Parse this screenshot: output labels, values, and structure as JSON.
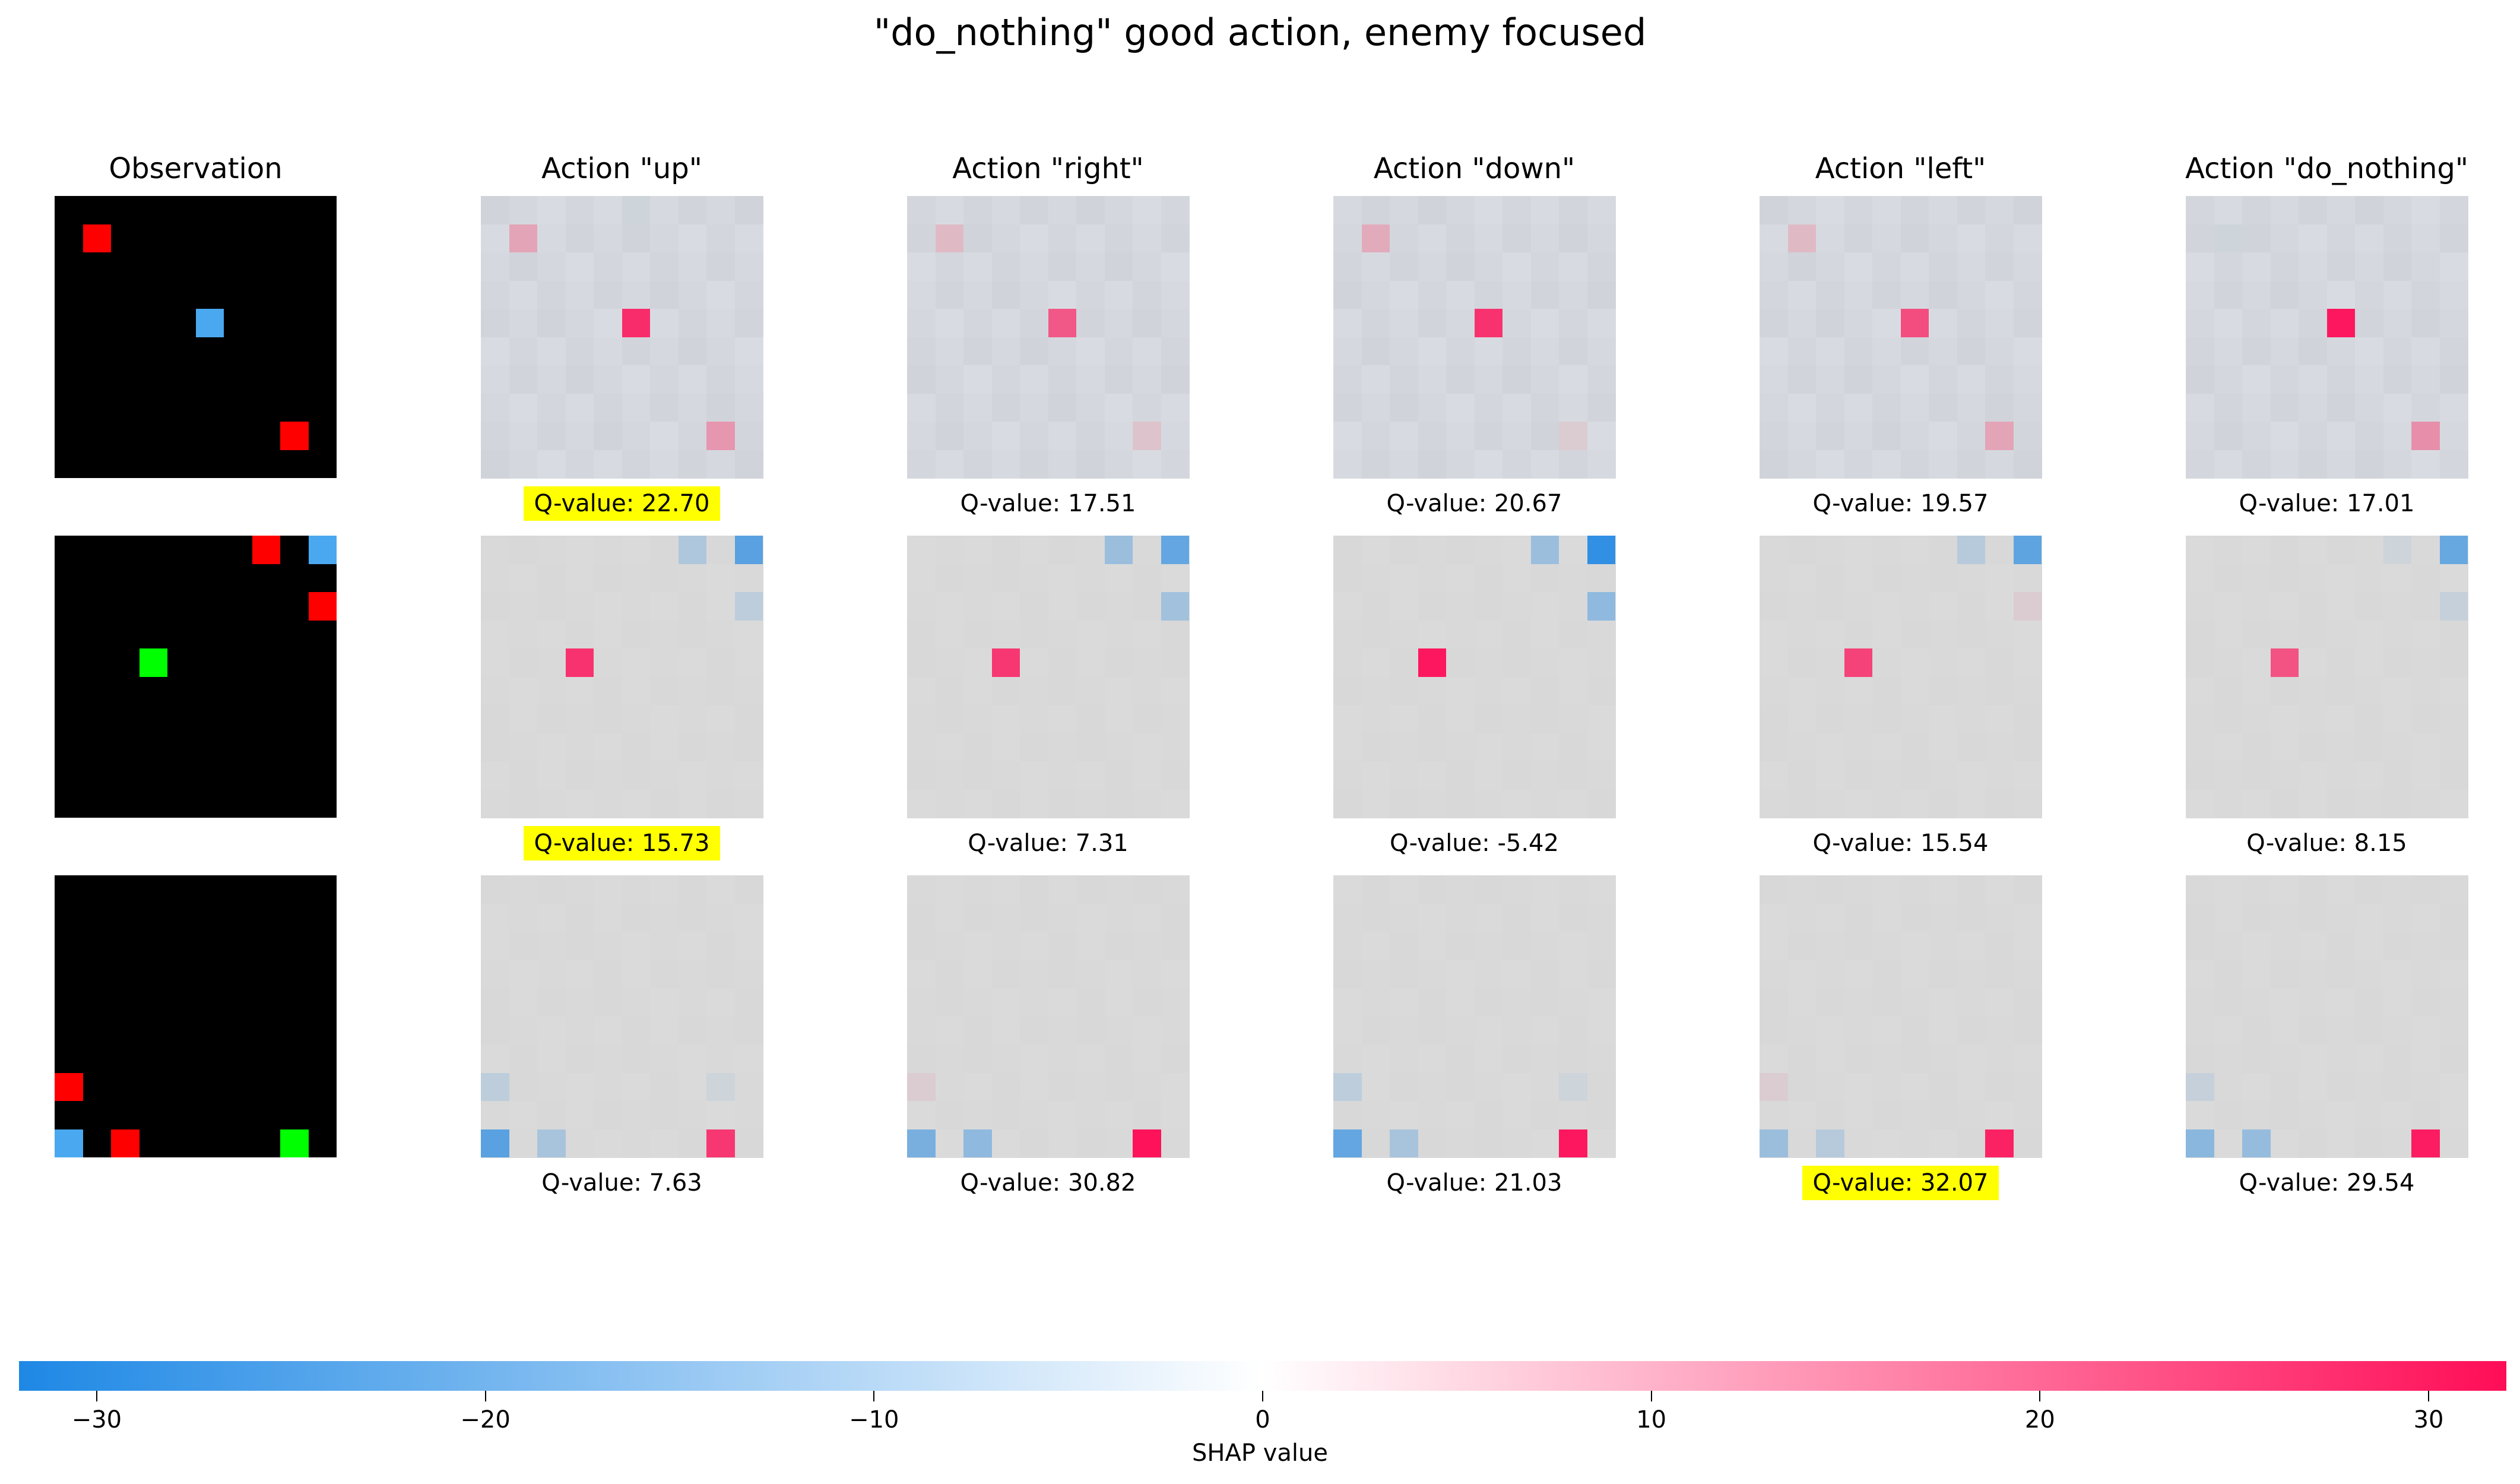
{
  "title": "\"do_nothing\" good action, enemy focused",
  "chart_data": {
    "type": "heatmap",
    "column_titles": [
      "Observation",
      "Action \"up\"",
      "Action \"right\"",
      "Action \"down\"",
      "Action \"left\"",
      "Action \"do_nothing\""
    ],
    "grid_size": 10,
    "rows": [
      {
        "observation": [
          {
            "r": 1,
            "c": 1,
            "color": "#ff0000"
          },
          {
            "r": 4,
            "c": 5,
            "color": "#4aa8f0"
          },
          {
            "r": 8,
            "c": 8,
            "color": "#ff0000"
          }
        ],
        "actions": [
          {
            "q_value": "Q-value: 22.70",
            "best": true,
            "cells": [
              {
                "r": 1,
                "c": 1,
                "v": 6
              },
              {
                "r": 4,
                "c": 5,
                "v": 26
              },
              {
                "r": 8,
                "c": 8,
                "v": 8
              },
              {
                "r": 0,
                "c": 5,
                "v": -1
              }
            ]
          },
          {
            "q_value": "Q-value: 17.51",
            "best": false,
            "cells": [
              {
                "r": 1,
                "c": 1,
                "v": 3
              },
              {
                "r": 4,
                "c": 5,
                "v": 18
              },
              {
                "r": 8,
                "c": 8,
                "v": 2
              }
            ]
          },
          {
            "q_value": "Q-value: 20.67",
            "best": false,
            "cells": [
              {
                "r": 1,
                "c": 1,
                "v": 5
              },
              {
                "r": 4,
                "c": 5,
                "v": 25
              },
              {
                "r": 8,
                "c": 8,
                "v": 1
              }
            ]
          },
          {
            "q_value": "Q-value: 19.57",
            "best": false,
            "cells": [
              {
                "r": 1,
                "c": 1,
                "v": 3
              },
              {
                "r": 4,
                "c": 5,
                "v": 20
              },
              {
                "r": 8,
                "c": 8,
                "v": 6
              }
            ]
          },
          {
            "q_value": "Q-value: 17.01",
            "best": false,
            "cells": [
              {
                "r": 1,
                "c": 1,
                "v": -1
              },
              {
                "r": 4,
                "c": 5,
                "v": 30
              },
              {
                "r": 8,
                "c": 8,
                "v": 9
              }
            ]
          }
        ]
      },
      {
        "observation": [
          {
            "r": 0,
            "c": 7,
            "color": "#ff0000"
          },
          {
            "r": 0,
            "c": 9,
            "color": "#4aa8f0"
          },
          {
            "r": 2,
            "c": 9,
            "color": "#ff0000"
          },
          {
            "r": 4,
            "c": 3,
            "color": "#00ff00"
          }
        ],
        "actions": [
          {
            "q_value": "Q-value: 15.73",
            "best": true,
            "cells": [
              {
                "r": 0,
                "c": 7,
                "v": -5
              },
              {
                "r": 0,
                "c": 9,
                "v": -20
              },
              {
                "r": 2,
                "c": 9,
                "v": -3
              },
              {
                "r": 4,
                "c": 3,
                "v": 25
              }
            ]
          },
          {
            "q_value": "Q-value: 7.31",
            "best": false,
            "cells": [
              {
                "r": 0,
                "c": 7,
                "v": -8
              },
              {
                "r": 0,
                "c": 9,
                "v": -18
              },
              {
                "r": 2,
                "c": 9,
                "v": -7
              },
              {
                "r": 4,
                "c": 3,
                "v": 24
              }
            ]
          },
          {
            "q_value": "Q-value: -5.42",
            "best": false,
            "cells": [
              {
                "r": 0,
                "c": 7,
                "v": -8
              },
              {
                "r": 0,
                "c": 9,
                "v": -28
              },
              {
                "r": 2,
                "c": 9,
                "v": -10
              },
              {
                "r": 4,
                "c": 3,
                "v": 30
              }
            ]
          },
          {
            "q_value": "Q-value: 15.54",
            "best": false,
            "cells": [
              {
                "r": 0,
                "c": 7,
                "v": -4
              },
              {
                "r": 0,
                "c": 9,
                "v": -19
              },
              {
                "r": 2,
                "c": 9,
                "v": 1
              },
              {
                "r": 4,
                "c": 3,
                "v": 22
              }
            ]
          },
          {
            "q_value": "Q-value: 8.15",
            "best": false,
            "cells": [
              {
                "r": 0,
                "c": 7,
                "v": -1
              },
              {
                "r": 0,
                "c": 9,
                "v": -17
              },
              {
                "r": 2,
                "c": 9,
                "v": -2
              },
              {
                "r": 4,
                "c": 3,
                "v": 19
              }
            ]
          }
        ]
      },
      {
        "observation": [
          {
            "r": 7,
            "c": 0,
            "color": "#ff0000"
          },
          {
            "r": 9,
            "c": 0,
            "color": "#4aa8f0"
          },
          {
            "r": 9,
            "c": 2,
            "color": "#ff0000"
          },
          {
            "r": 9,
            "c": 8,
            "color": "#00ff00"
          }
        ],
        "actions": [
          {
            "q_value": "Q-value: 7.63",
            "best": false,
            "cells": [
              {
                "r": 7,
                "c": 0,
                "v": -3
              },
              {
                "r": 9,
                "c": 0,
                "v": -20
              },
              {
                "r": 9,
                "c": 2,
                "v": -6
              },
              {
                "r": 9,
                "c": 8,
                "v": 24
              },
              {
                "r": 7,
                "c": 8,
                "v": -1
              }
            ]
          },
          {
            "q_value": "Q-value: 30.82",
            "best": false,
            "cells": [
              {
                "r": 7,
                "c": 0,
                "v": 1
              },
              {
                "r": 9,
                "c": 0,
                "v": -14
              },
              {
                "r": 9,
                "c": 2,
                "v": -10
              },
              {
                "r": 9,
                "c": 8,
                "v": 31
              }
            ]
          },
          {
            "q_value": "Q-value: 21.03",
            "best": false,
            "cells": [
              {
                "r": 7,
                "c": 0,
                "v": -3
              },
              {
                "r": 9,
                "c": 0,
                "v": -18
              },
              {
                "r": 9,
                "c": 2,
                "v": -6
              },
              {
                "r": 9,
                "c": 8,
                "v": 30
              },
              {
                "r": 7,
                "c": 8,
                "v": -1
              }
            ]
          },
          {
            "q_value": "Q-value: 32.07",
            "best": true,
            "cells": [
              {
                "r": 7,
                "c": 0,
                "v": 1
              },
              {
                "r": 9,
                "c": 0,
                "v": -8
              },
              {
                "r": 9,
                "c": 2,
                "v": -4
              },
              {
                "r": 9,
                "c": 8,
                "v": 28
              }
            ]
          },
          {
            "q_value": "Q-value: 29.54",
            "best": false,
            "cells": [
              {
                "r": 7,
                "c": 0,
                "v": -2
              },
              {
                "r": 9,
                "c": 0,
                "v": -11
              },
              {
                "r": 9,
                "c": 2,
                "v": -9
              },
              {
                "r": 9,
                "c": 8,
                "v": 29
              }
            ]
          }
        ]
      }
    ],
    "colorbar": {
      "label": "SHAP value",
      "range": [
        -32,
        32
      ],
      "ticks": [
        -30,
        -20,
        -10,
        0,
        10,
        20,
        30
      ],
      "tick_labels": [
        "−30",
        "−20",
        "−10",
        "0",
        "10",
        "20",
        "30"
      ],
      "negative_color": "#1e88e5",
      "neutral_color": "#ffffff",
      "positive_color": "#ff0d57"
    }
  }
}
